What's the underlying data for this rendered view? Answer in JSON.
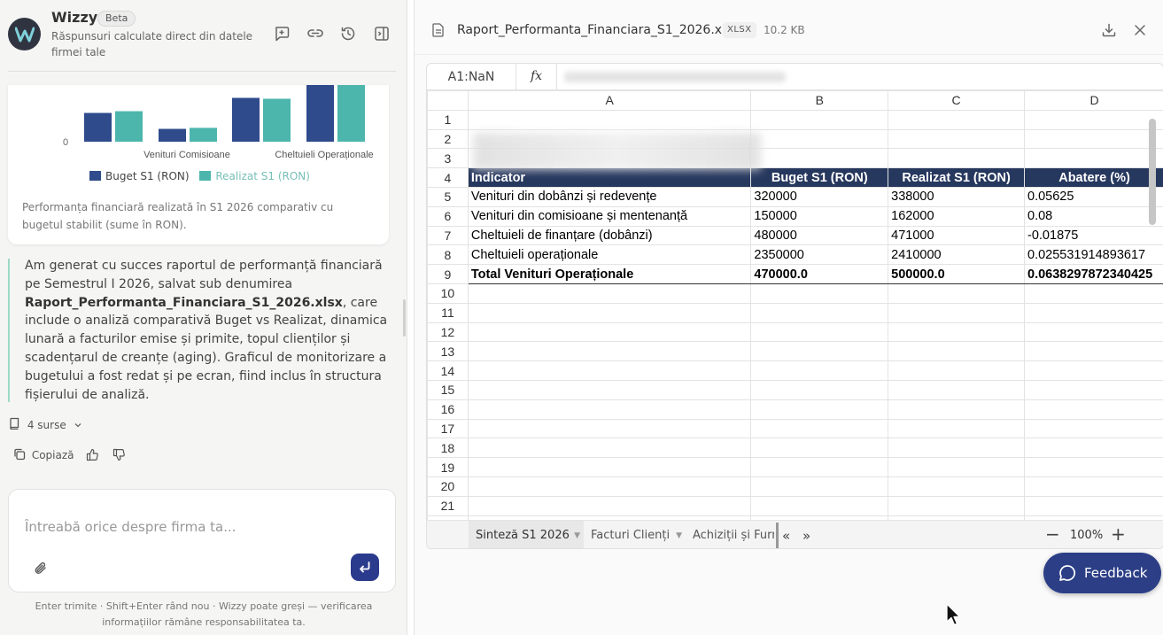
{
  "app": {
    "name": "Wizzy",
    "badge": "Beta",
    "subtitle": "Răspunsuri calculate direct din datele firmei tale"
  },
  "header_icons": [
    "new-chat-icon",
    "link-icon",
    "history-icon",
    "panel-toggle-icon"
  ],
  "chart_data": {
    "type": "bar",
    "categories": [
      "Venituri din dobânzi",
      "Venituri Comisioane",
      "Cheltuieli de finanțare",
      "Cheltuieli Operaționale"
    ],
    "tick_labels_visible": [
      "Venituri Comisioane",
      "Cheltuieli Operaționale"
    ],
    "y_tick_visible": "0",
    "series": [
      {
        "name": "Buget S1 (RON)",
        "color": "#2f4b8c",
        "values": [
          320000,
          150000,
          480000,
          2350000
        ]
      },
      {
        "name": "Realizat S1 (RON)",
        "color": "#4db6ac",
        "values": [
          338000,
          162000,
          471000,
          2410000
        ]
      }
    ],
    "title": "",
    "xlabel": "",
    "ylabel": "",
    "legend_position": "bottom",
    "caption": "Performanța financiară realizată în S1 2026 comparativ cu bugetul stabilit (sume în RON)."
  },
  "message": {
    "p1": "Am generat cu succes raportul de performanță financiară pe Semestrul I 2026, salvat sub denumirea ",
    "file": "Raport_Performanta_Financiara_S1_2026.xlsx",
    "p2": ", care include o analiză comparativă Buget vs Realizat, dinamica lunară a facturilor emise și primite, topul clienților și scadențarul de creanțe (aging). Graficul de monitorizare a bugetului a fost redat și pe ecran, fiind inclus în structura fișierului de analiză."
  },
  "sources_label": "4 surse",
  "copy_label": "Copiază",
  "input": {
    "placeholder": "Întreabă orice despre firma ta..."
  },
  "footer_note": "Enter trimite · Shift+Enter rând nou · Wizzy poate greși — verificarea informațiilor rămâne responsabilitatea ta.",
  "file": {
    "name": "Raport_Performanta_Financiara_S1_2026.xlsx",
    "type": "XLSX",
    "size": "10.2 KB"
  },
  "sheet": {
    "cell_ref": "A1:NaN",
    "fx": "fx",
    "columns": [
      "A",
      "B",
      "C",
      "D"
    ],
    "header_row": [
      "Indicator",
      "Buget S1 (RON)",
      "Realizat S1 (RON)",
      "Abatere (%)"
    ],
    "rows": [
      [
        "Venituri din dobânzi și redevențe",
        "320000",
        "338000",
        "0.05625"
      ],
      [
        "Venituri din comisioane și mentenanță",
        "150000",
        "162000",
        "0.08"
      ],
      [
        "Cheltuieli de finanțare (dobânzi)",
        "480000",
        "471000",
        "-0.01875"
      ],
      [
        "Cheltuieli operaționale",
        "2350000",
        "2410000",
        "0.025531914893617"
      ]
    ],
    "total_row": [
      "Total Venituri Operaționale",
      "470000.0",
      "500000.0",
      "0.0638297872340425"
    ],
    "row_numbers": [
      "1",
      "2",
      "3",
      "4",
      "5",
      "6",
      "7",
      "8",
      "9",
      "10",
      "11",
      "12",
      "13",
      "14",
      "15",
      "16",
      "17",
      "18",
      "19",
      "20",
      "21",
      "22"
    ],
    "tabs": [
      "Sinteză S1 2026",
      "Facturi Clienți",
      "Achiziții și Furn"
    ],
    "zoom": "100%"
  },
  "feedback_label": "Feedback"
}
